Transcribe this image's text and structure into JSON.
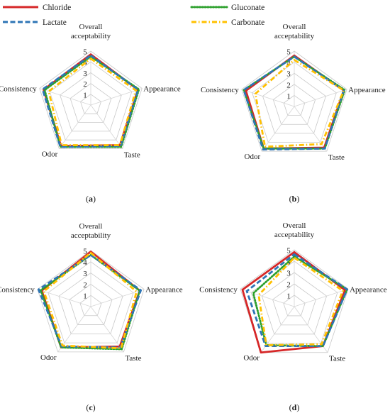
{
  "legend": {
    "items": [
      {
        "name": "Chloride",
        "color": "#d62728",
        "style": "solid"
      },
      {
        "name": "Gluconate",
        "color": "#2ca02c",
        "style": "dotted"
      },
      {
        "name": "Lactate",
        "color": "#2e75b6",
        "style": "dashed"
      },
      {
        "name": "Carbonate",
        "color": "#ffc000",
        "style": "dashdot"
      }
    ]
  },
  "chart_data": [
    {
      "type": "radar",
      "panel_label": "(a)",
      "axes": [
        "Overall acceptability",
        "Appearance",
        "Taste",
        "Odor",
        "Consistency"
      ],
      "tick_labels": [
        "1",
        "2",
        "3",
        "4",
        "5"
      ],
      "rmax": 5,
      "series": [
        {
          "name": "Chloride",
          "values": [
            4.7,
            4.6,
            4.6,
            4.7,
            4.6
          ]
        },
        {
          "name": "Gluconate",
          "values": [
            4.5,
            4.7,
            4.8,
            4.8,
            4.5
          ]
        },
        {
          "name": "Lactate",
          "values": [
            4.6,
            4.6,
            4.7,
            4.8,
            4.7
          ]
        },
        {
          "name": "Carbonate",
          "values": [
            4.3,
            4.4,
            4.6,
            4.6,
            4.1
          ]
        }
      ]
    },
    {
      "type": "radar",
      "panel_label": "(b)",
      "axes": [
        "Overall acceptability",
        "Appearance",
        "Taste",
        "Odor",
        "Consistency"
      ],
      "tick_labels": [
        "1",
        "2",
        "3",
        "4",
        "5"
      ],
      "rmax": 5,
      "series": [
        {
          "name": "Chloride",
          "values": [
            4.6,
            4.7,
            4.6,
            4.7,
            4.6
          ]
        },
        {
          "name": "Gluconate",
          "values": [
            4.5,
            4.8,
            4.7,
            4.7,
            4.8
          ]
        },
        {
          "name": "Lactate",
          "values": [
            4.5,
            4.7,
            4.7,
            4.8,
            4.8
          ]
        },
        {
          "name": "Carbonate",
          "values": [
            4.2,
            4.7,
            4.2,
            4.5,
            3.7
          ]
        }
      ]
    },
    {
      "type": "radar",
      "panel_label": "(c)",
      "axes": [
        "Overall acceptability",
        "Appearance",
        "Taste",
        "Odor",
        "Consistency"
      ],
      "tick_labels": [
        "1",
        "2",
        "3",
        "4",
        "5"
      ],
      "rmax": 5,
      "series": [
        {
          "name": "Chloride",
          "values": [
            4.9,
            4.6,
            4.4,
            4.5,
            4.6
          ]
        },
        {
          "name": "Gluconate",
          "values": [
            4.6,
            4.6,
            4.7,
            4.5,
            4.7
          ]
        },
        {
          "name": "Lactate",
          "values": [
            4.6,
            4.7,
            4.5,
            4.4,
            4.9
          ]
        },
        {
          "name": "Carbonate",
          "values": [
            4.8,
            4.3,
            4.6,
            4.3,
            4.4
          ]
        }
      ]
    },
    {
      "type": "radar",
      "panel_label": "(d)",
      "axes": [
        "Overall acceptability",
        "Appearance",
        "Taste",
        "Odor",
        "Consistency"
      ],
      "tick_labels": [
        "1",
        "2",
        "3",
        "4",
        "5"
      ],
      "rmax": 5,
      "series": [
        {
          "name": "Chloride",
          "values": [
            4.8,
            4.7,
            4.3,
            5.0,
            4.8
          ]
        },
        {
          "name": "Gluconate",
          "values": [
            4.4,
            4.9,
            4.3,
            4.2,
            3.8
          ]
        },
        {
          "name": "Lactate",
          "values": [
            4.6,
            4.9,
            4.3,
            4.3,
            4.4
          ]
        },
        {
          "name": "Carbonate",
          "values": [
            4.3,
            4.5,
            4.1,
            4.2,
            3.3
          ]
        }
      ]
    }
  ]
}
